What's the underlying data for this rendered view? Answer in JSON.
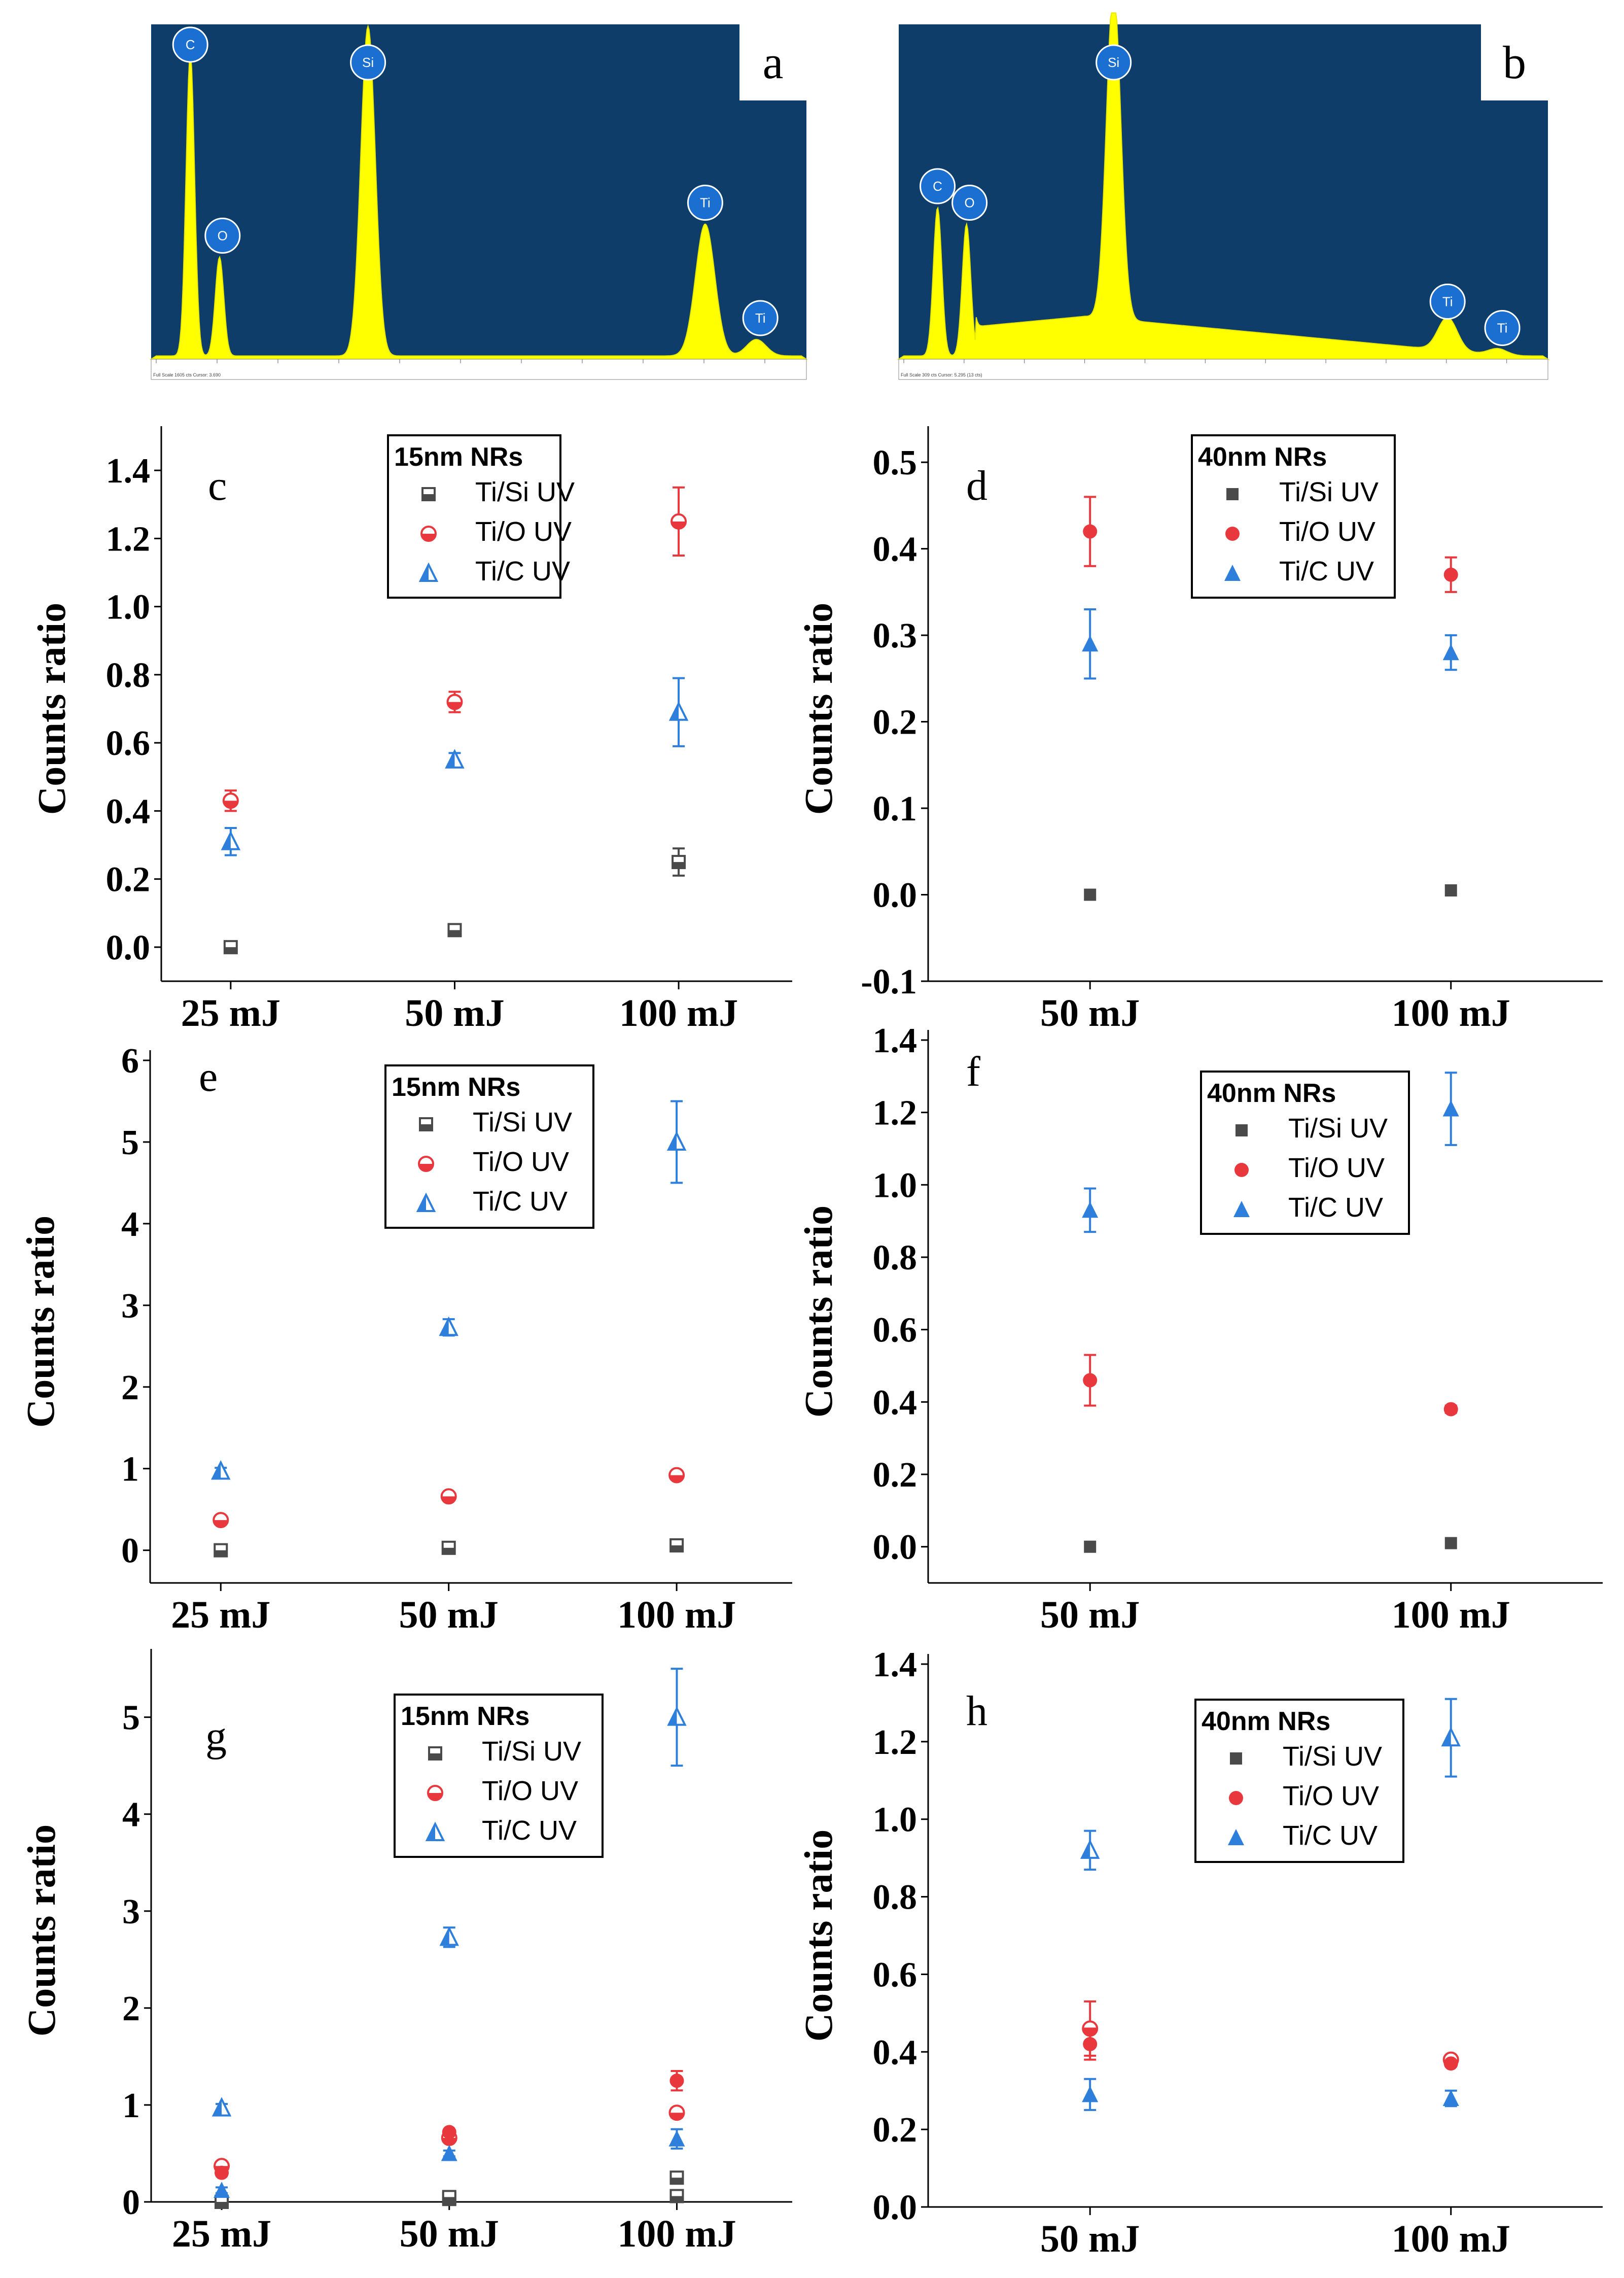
{
  "colors": {
    "si": "#4a4a4a",
    "o": "#e8383d",
    "c": "#2e7fdc",
    "spectrum_bg": "#0d3d68",
    "spectrum_fill": "#ffff00",
    "element_badge": "#1a6fd0"
  },
  "spectra": [
    {
      "label": "a",
      "peaks": [
        {
          "element": "C",
          "energy": 0.28,
          "height": 0.92
        },
        {
          "element": "O",
          "energy": 0.52,
          "height": 0.3
        },
        {
          "element": "Si",
          "energy": 1.74,
          "height": 1.0
        },
        {
          "element": "Ti",
          "energy": 4.51,
          "height": 0.4
        },
        {
          "element": "Ti",
          "energy": 4.93,
          "height": 0.05
        }
      ],
      "footer": "Full Scale 1605 cts Cursor: 3.690"
    },
    {
      "label": "b",
      "peaks": [
        {
          "element": "C",
          "energy": 0.28,
          "height": 0.45
        },
        {
          "element": "O",
          "energy": 0.52,
          "height": 0.4
        },
        {
          "element": "Si",
          "energy": 1.74,
          "height": 1.0
        },
        {
          "element": "Ti",
          "energy": 4.51,
          "height": 0.1
        },
        {
          "element": "Ti",
          "energy": 4.93,
          "height": 0.02
        }
      ],
      "footer": "Full Scale 309 cts Cursor: 5.295 (13 cts)"
    }
  ],
  "chart_data": [
    {
      "label": "c",
      "type": "scatter",
      "ylabel": "Counts ratio",
      "categories": [
        "25 mJ",
        "50 mJ",
        "100 mJ"
      ],
      "ylim": [
        -0.1,
        1.5
      ],
      "yticks": [
        "0.0",
        "0.2",
        "0.4",
        "0.6",
        "0.8",
        "1.0",
        "1.2",
        "1.4"
      ],
      "legend_title": "15nm NRs",
      "series": [
        {
          "name": "Ti/Si UV",
          "values": [
            0.0,
            0.05,
            0.25
          ],
          "errors": [
            0.0,
            0.0,
            0.04
          ]
        },
        {
          "name": "Ti/O UV",
          "values": [
            0.43,
            0.72,
            1.25
          ],
          "errors": [
            0.03,
            0.03,
            0.1
          ]
        },
        {
          "name": "Ti/C UV",
          "values": [
            0.31,
            0.55,
            0.69
          ],
          "errors": [
            0.04,
            0.02,
            0.1
          ]
        }
      ]
    },
    {
      "label": "d",
      "type": "scatter",
      "ylabel": "Counts ratio",
      "categories": [
        "50 mJ",
        "100 mJ"
      ],
      "ylim": [
        -0.1,
        0.53
      ],
      "yticks": [
        "-0.1",
        "0.0",
        "0.1",
        "0.2",
        "0.3",
        "0.4",
        "0.5"
      ],
      "legend_title": "40nm NRs",
      "series": [
        {
          "name": "Ti/Si UV",
          "values": [
            0.0,
            0.005
          ],
          "errors": [
            0.0,
            0.0
          ]
        },
        {
          "name": "Ti/O UV",
          "values": [
            0.42,
            0.37
          ],
          "errors": [
            0.04,
            0.02
          ]
        },
        {
          "name": "Ti/C UV",
          "values": [
            0.29,
            0.28
          ],
          "errors": [
            0.04,
            0.02
          ]
        }
      ]
    },
    {
      "label": "e",
      "type": "scatter",
      "ylabel": "Counts ratio",
      "categories": [
        "25 mJ",
        "50 mJ",
        "100 mJ"
      ],
      "ylim": [
        -0.4,
        6.0
      ],
      "yticks": [
        "0",
        "1",
        "2",
        "3",
        "4",
        "5",
        "6"
      ],
      "legend_title": "15nm NRs",
      "series": [
        {
          "name": "Ti/Si UV",
          "values": [
            0.0,
            0.03,
            0.06
          ],
          "errors": [
            0.0,
            0.0,
            0.0
          ]
        },
        {
          "name": "Ti/O UV",
          "values": [
            0.37,
            0.66,
            0.92
          ],
          "errors": [
            0.03,
            0.03,
            0.05
          ]
        },
        {
          "name": "Ti/C UV",
          "values": [
            0.97,
            2.73,
            5.0
          ],
          "errors": [
            0.04,
            0.1,
            0.5
          ]
        }
      ]
    },
    {
      "label": "f",
      "type": "scatter",
      "ylabel": "Counts ratio",
      "categories": [
        "50 mJ",
        "100 mJ"
      ],
      "ylim": [
        -0.1,
        1.4
      ],
      "yticks": [
        "0.0",
        "0.2",
        "0.4",
        "0.6",
        "0.8",
        "1.0",
        "1.2",
        "1.4"
      ],
      "legend_title": "40nm NRs",
      "series": [
        {
          "name": "Ti/Si UV",
          "values": [
            0.0,
            0.01
          ],
          "errors": [
            0.0,
            0.0
          ]
        },
        {
          "name": "Ti/O UV",
          "values": [
            0.46,
            0.38
          ],
          "errors": [
            0.07,
            0.01
          ]
        },
        {
          "name": "Ti/C UV",
          "values": [
            0.93,
            1.21
          ],
          "errors": [
            0.06,
            0.1
          ]
        }
      ]
    },
    {
      "label": "g",
      "type": "scatter",
      "ylabel": "Counts ratio",
      "categories": [
        "25 mJ",
        "50 mJ",
        "100 mJ"
      ],
      "ylim": [
        0.0,
        5.6
      ],
      "yticks": [
        "0",
        "1",
        "2",
        "3",
        "4",
        "5"
      ],
      "legend_title": "15nm NRs",
      "series": [
        {
          "name": "Ti/Si UV",
          "values": [
            0.0,
            0.03,
            0.06,
            0.0,
            0.05,
            0.25
          ],
          "errors": [
            0,
            0,
            0,
            0,
            0,
            0
          ],
          "cats": [
            0,
            1,
            2,
            0,
            1,
            2
          ]
        },
        {
          "name": "Ti/O UV",
          "values": [
            0.37,
            0.66,
            0.92,
            0.3,
            0.72,
            1.25
          ],
          "errors": [
            0.03,
            0.03,
            0.05,
            0.03,
            0.03,
            0.1
          ],
          "cats": [
            0,
            1,
            2,
            0,
            1,
            2
          ],
          "filled": [
            false,
            false,
            false,
            true,
            true,
            true
          ]
        },
        {
          "name": "Ti/C UV",
          "values": [
            0.97,
            2.73,
            5.0,
            0.12,
            0.5,
            0.65
          ],
          "errors": [
            0.04,
            0.1,
            0.5,
            0.03,
            0.03,
            0.1
          ],
          "cats": [
            0,
            1,
            2,
            0,
            1,
            2
          ],
          "filled": [
            false,
            false,
            false,
            true,
            true,
            true
          ]
        }
      ]
    },
    {
      "label": "h",
      "type": "scatter",
      "ylabel": "Counts ratio",
      "categories": [
        "50 mJ",
        "100 mJ"
      ],
      "ylim": [
        0.0,
        1.4
      ],
      "yticks": [
        "0.0",
        "0.2",
        "0.4",
        "0.6",
        "0.8",
        "1.0",
        "1.2",
        "1.4"
      ],
      "legend_title": "40nm NRs",
      "series": [
        {
          "name": "Ti/Si UV",
          "values": [],
          "errors": [],
          "cats": []
        },
        {
          "name": "Ti/O UV",
          "values": [
            0.46,
            0.38,
            0.42,
            0.37
          ],
          "errors": [
            0.07,
            0.01,
            0.04,
            0.0
          ],
          "cats": [
            0,
            1,
            0,
            1
          ],
          "filled": [
            false,
            false,
            true,
            true
          ]
        },
        {
          "name": "Ti/C UV",
          "values": [
            0.92,
            1.21,
            0.29,
            0.28
          ],
          "errors": [
            0.05,
            0.1,
            0.04,
            0.02
          ],
          "cats": [
            0,
            1,
            0,
            1
          ],
          "filled": [
            false,
            false,
            true,
            true
          ]
        }
      ]
    }
  ]
}
